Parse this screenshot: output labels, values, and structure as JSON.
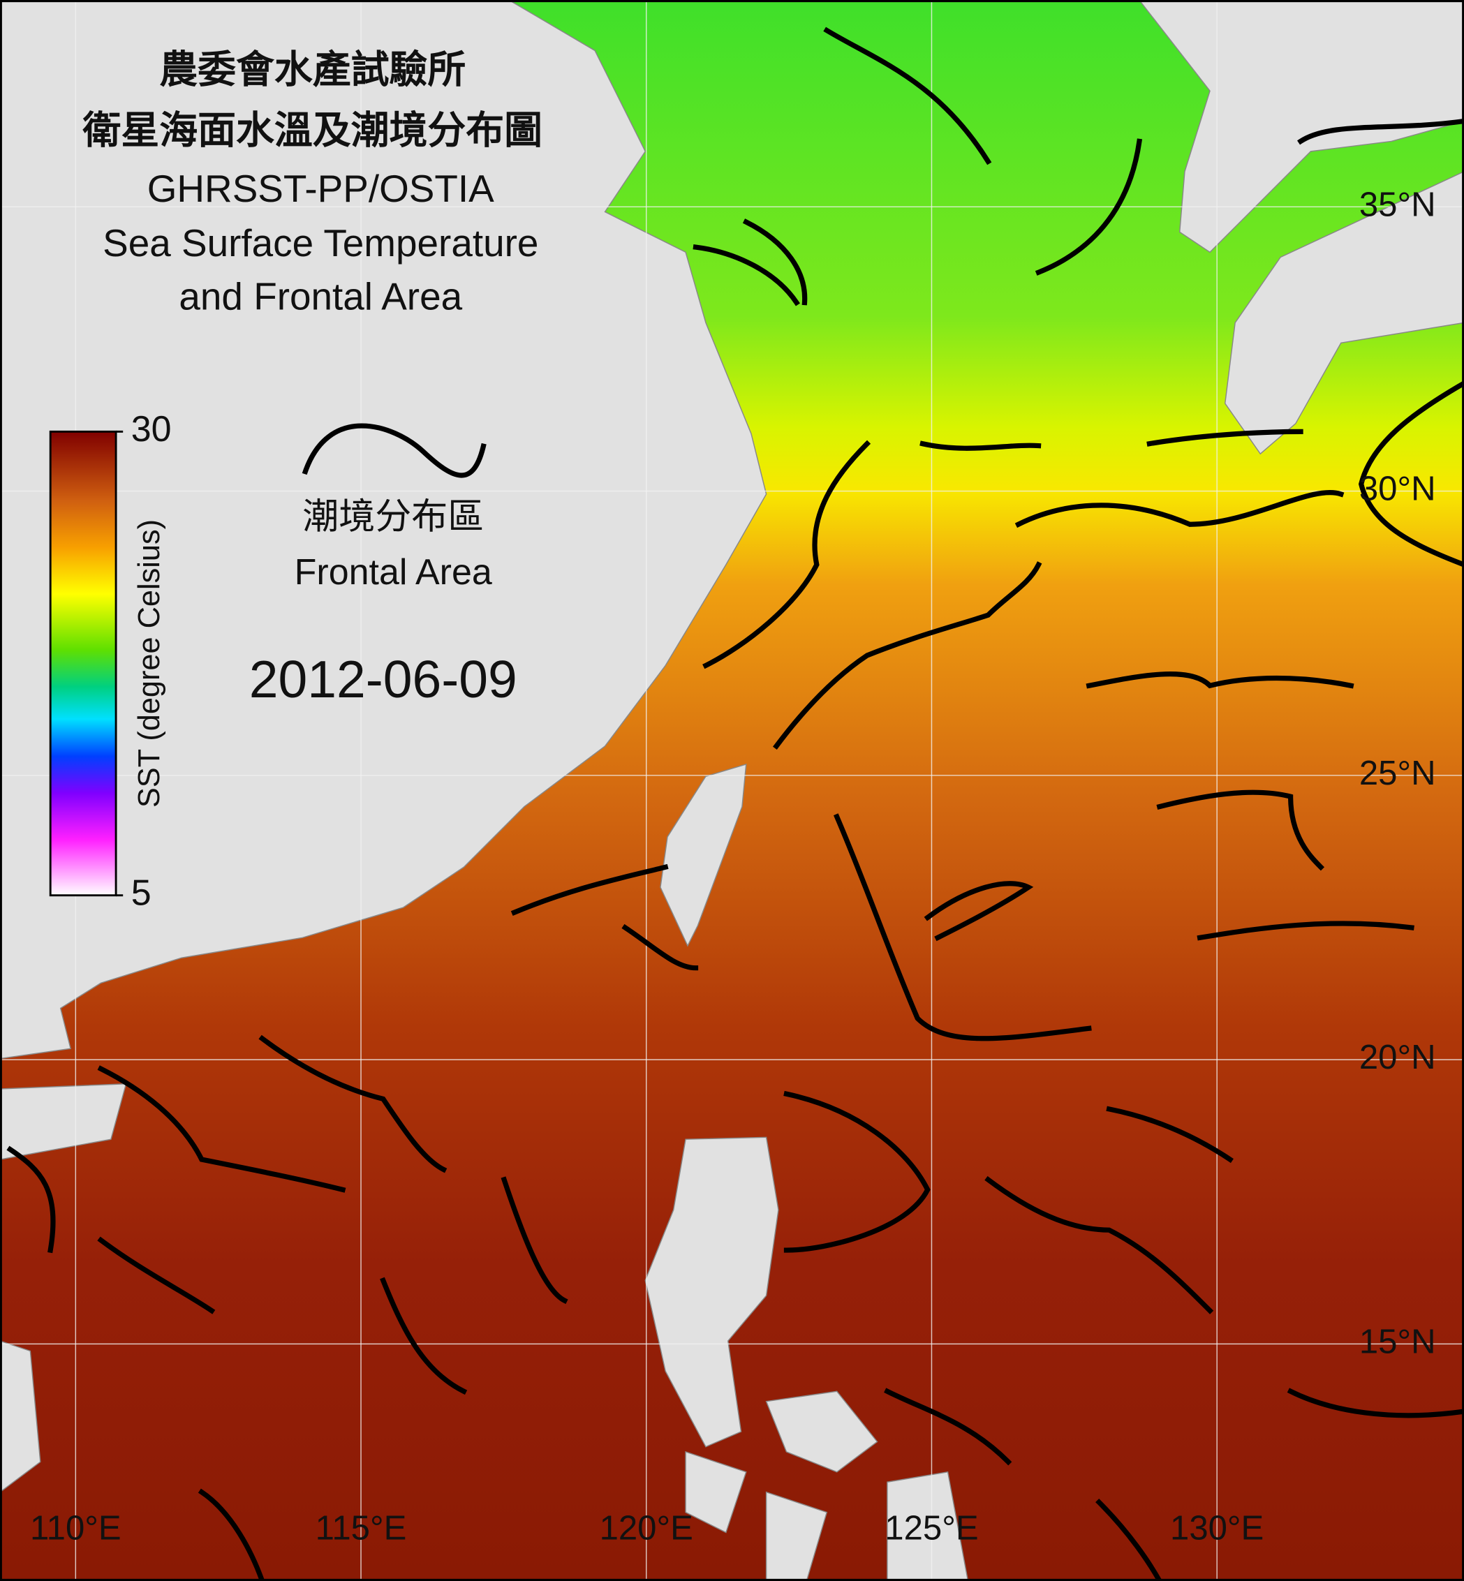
{
  "title": [
    "農委會水產試驗所",
    "衛星海面水溫及潮境分布圖",
    "GHRSST-PP/OSTIA",
    "Sea Surface Temperature",
    "and Frontal Area"
  ],
  "colorbar": {
    "label": "SST (degree Celsius)",
    "range": [
      5,
      30
    ],
    "ticks": [
      5,
      30
    ]
  },
  "legend": {
    "label_zh": "潮境分布區",
    "label_en": "Frontal Area"
  },
  "date": "2012-06-09",
  "map": {
    "lon_ticks": [
      {
        "value": 110,
        "label": "110°E"
      },
      {
        "value": 115,
        "label": "115°E"
      },
      {
        "value": 120,
        "label": "120°E"
      },
      {
        "value": 125,
        "label": "125°E"
      },
      {
        "value": 130,
        "label": "130°E"
      }
    ],
    "lat_ticks": [
      {
        "value": 15,
        "label": "15°N"
      },
      {
        "value": 20,
        "label": "20°N"
      },
      {
        "value": 25,
        "label": "25°N"
      },
      {
        "value": 30,
        "label": "30°N"
      },
      {
        "value": 35,
        "label": "35°N"
      }
    ]
  }
}
